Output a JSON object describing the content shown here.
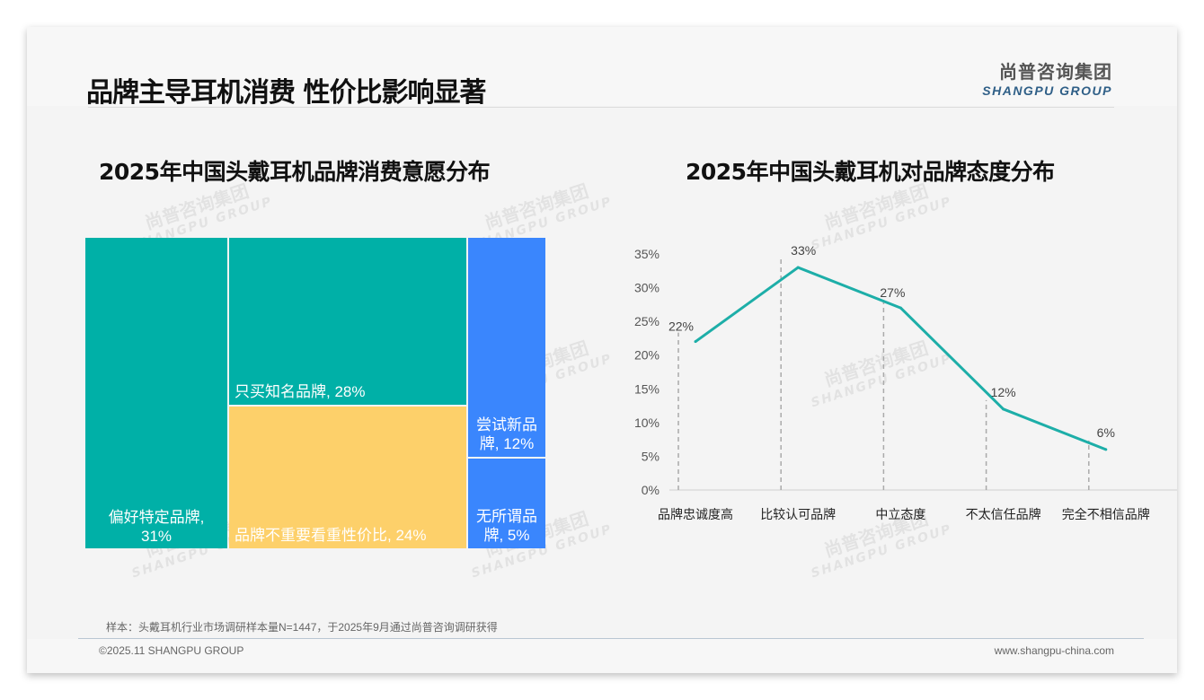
{
  "header": {
    "title": "品牌主导耳机消费 性价比影响显著"
  },
  "logo": {
    "cn": "尚普咨询集团",
    "en": "SHANGPU GROUP"
  },
  "watermark": {
    "cn": "尚普咨询集团",
    "en": "SHANGPU GROUP"
  },
  "colors": {
    "teal": "#00b0a7",
    "yellow": "#fdd06a",
    "blue": "#3a86fd",
    "line": "#1daea8"
  },
  "chart_data": [
    {
      "type": "treemap",
      "title": "2025年中国头戴耳机品牌消费意愿分布",
      "items": [
        {
          "label": "偏好特定品牌,",
          "label2": "31%",
          "value": 31
        },
        {
          "label": "只买知名品牌, 28%",
          "value": 28
        },
        {
          "label": "品牌不重要看重性价比, 24%",
          "value": 24
        },
        {
          "label": "尝试新品",
          "label2": "牌, 12%",
          "value": 12
        },
        {
          "label": "无所谓品",
          "label2": "牌, 5%",
          "value": 5
        }
      ]
    },
    {
      "type": "line",
      "title": "2025年中国头戴耳机对品牌态度分布",
      "categories": [
        "品牌忠诚度高",
        "比较认可品牌",
        "中立态度",
        "不太信任品牌",
        "完全不相信品牌"
      ],
      "values": [
        22,
        33,
        27,
        12,
        6
      ],
      "data_labels": [
        "22%",
        "33%",
        "27%",
        "12%",
        "6%"
      ],
      "ylim": [
        0,
        35
      ],
      "yticks": [
        "0%",
        "5%",
        "10%",
        "15%",
        "20%",
        "25%",
        "30%",
        "35%"
      ]
    }
  ],
  "footer": {
    "note": "样本：头戴耳机行业市场调研样本量N=1447，于2025年9月通过尚普咨询调研获得",
    "copyright": "©2025.11 SHANGPU GROUP",
    "url": "www.shangpu-china.com"
  }
}
